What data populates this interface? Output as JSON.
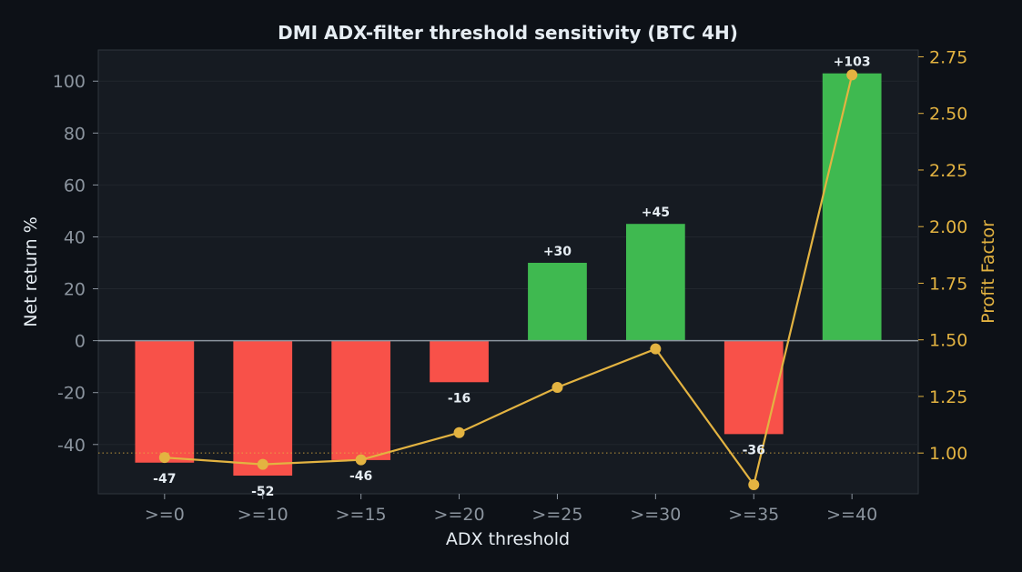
{
  "colors": {
    "background": "#0d1117",
    "plot_background": "#161b22",
    "positive_bar": "#3fb950",
    "negative_bar": "#f85149",
    "profit_factor_line": "#e3b341",
    "text": "#e6edf3",
    "tick_text": "#8b949e",
    "grid": "#21262d",
    "zero_line": "#8b949e"
  },
  "chart_data": {
    "type": "bar",
    "title": "DMI ADX-filter threshold sensitivity (BTC 4H)",
    "xlabel": "ADX threshold",
    "ylabel": "Net return %",
    "ylabel_right": "Profit Factor",
    "categories": [
      ">=0",
      ">=10",
      ">=15",
      ">=20",
      ">=25",
      ">=30",
      ">=35",
      ">=40"
    ],
    "series": [
      {
        "axis": "left",
        "kind": "bar",
        "values": [
          -47,
          -52,
          -46,
          -16,
          30,
          45,
          -36,
          103
        ],
        "labels": [
          "-47",
          "-52",
          "-46",
          "-16",
          "+30",
          "+45",
          "-36",
          "+103"
        ]
      },
      {
        "axis": "right",
        "kind": "line",
        "values": [
          0.98,
          0.95,
          0.97,
          1.09,
          1.29,
          1.46,
          0.86,
          2.67
        ]
      }
    ],
    "ylim": [
      -59,
      112
    ],
    "yticks": [
      -40,
      -20,
      0,
      20,
      40,
      60,
      80,
      100
    ],
    "ylim_right": [
      0.82,
      2.78
    ],
    "yticks_right": [
      1.0,
      1.25,
      1.5,
      1.75,
      2.0,
      2.25,
      2.5,
      2.75
    ],
    "yticks_right_labels": [
      "1.00",
      "1.25",
      "1.50",
      "1.75",
      "2.00",
      "2.25",
      "2.50",
      "2.75"
    ],
    "reference_line_right": 1.0,
    "grid": true
  }
}
